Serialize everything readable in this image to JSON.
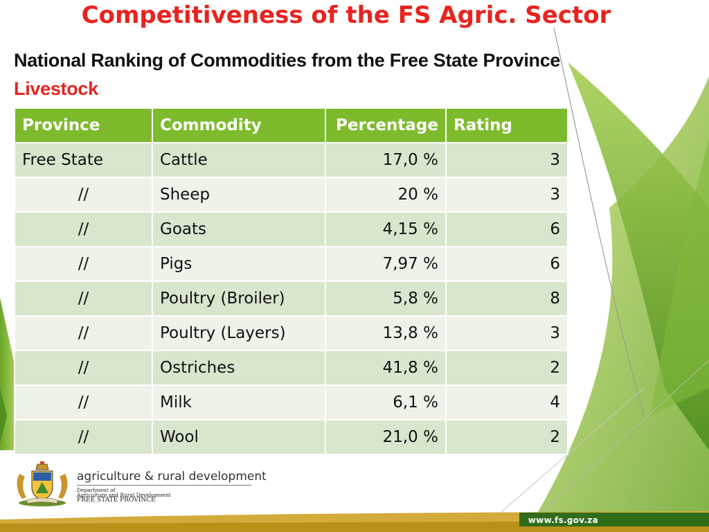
{
  "slide": {
    "title": "Competitiveness of the FS Agric. Sector",
    "subtitle": "National Ranking of Commodities from the Free State Province",
    "section": "Livestock"
  },
  "table": {
    "headers": [
      "Province",
      "Commodity",
      "Percentage",
      "Rating"
    ],
    "rows": [
      {
        "province": "Free State",
        "commodity": "Cattle",
        "percentage": "17,0 %",
        "rating": "3"
      },
      {
        "province": "//",
        "commodity": "Sheep",
        "percentage": "20 %",
        "rating": "3"
      },
      {
        "province": "//",
        "commodity": "Goats",
        "percentage": "4,15 %",
        "rating": "6"
      },
      {
        "province": "//",
        "commodity": "Pigs",
        "percentage": "7,97 %",
        "rating": "6"
      },
      {
        "province": "//",
        "commodity": "Poultry (Broiler)",
        "percentage": "5,8 %",
        "rating": "8"
      },
      {
        "province": "//",
        "commodity": "Poultry (Layers)",
        "percentage": "13,8 %",
        "rating": "3"
      },
      {
        "province": "//",
        "commodity": "Ostriches",
        "percentage": "41,8 %",
        "rating": "2"
      },
      {
        "province": "//",
        "commodity": "Milk",
        "percentage": "6,1 %",
        "rating": "4"
      },
      {
        "province": "//",
        "commodity": "Wool",
        "percentage": "21,0 %",
        "rating": "2"
      }
    ]
  },
  "footer": {
    "dept_name": "agriculture & rural development",
    "dept_line1": "Department of",
    "dept_line2": "Agriculture and Rural Development",
    "dept_line3": "FREE STATE PROVINCE",
    "url": "www.fs.gov.za",
    "logo_icon": "free-state-coat-of-arms"
  },
  "colors": {
    "title_red": "#e8231f",
    "header_green": "#7dbb2d",
    "row_dark": "#d8e6cd",
    "row_light": "#edf3e9",
    "footer_gold": "#b8901a"
  }
}
